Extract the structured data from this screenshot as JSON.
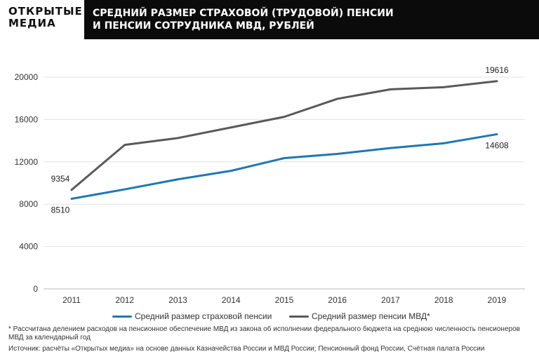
{
  "logo": {
    "line1": "ОТКРЫТЫЕ",
    "line2": "МЕДИА"
  },
  "header": {
    "title_line1": "СРЕДНИЙ РАЗМЕР СТРАХОВОЙ (ТРУДОВОЙ) ПЕНСИИ",
    "title_line2": "И ПЕНСИИ СОТРУДНИКА МВД, РУБЛЕЙ"
  },
  "chart_data": {
    "type": "line",
    "title": "СРЕДНИЙ РАЗМЕР СТРАХОВОЙ (ТРУДОВОЙ) ПЕНСИИ И ПЕНСИИ СОТРУДНИКА МВД, РУБЛЕЙ",
    "xlabel": "",
    "ylabel": "",
    "categories": [
      "2011",
      "2012",
      "2013",
      "2014",
      "2015",
      "2016",
      "2017",
      "2018",
      "2019"
    ],
    "ylim": [
      0,
      20000
    ],
    "yticks": [
      "0",
      "4000",
      "8000",
      "12000",
      "16000",
      "20000"
    ],
    "grid": true,
    "legend_position": "bottom",
    "series": [
      {
        "name": "Средний размер страховой пенсии",
        "color": "#1f77b4",
        "values": [
          8510,
          9400,
          10350,
          11150,
          12350,
          12750,
          13300,
          13750,
          14608
        ],
        "labels": [
          {
            "index": 0,
            "text": "8510",
            "position": "below"
          },
          {
            "index": 8,
            "text": "14608",
            "position": "below"
          }
        ]
      },
      {
        "name": "Средний размер пенсии МВД*",
        "color": "#595959",
        "values": [
          9354,
          13600,
          14250,
          15250,
          16250,
          17950,
          18850,
          19050,
          19616
        ],
        "labels": [
          {
            "index": 0,
            "text": "9354",
            "position": "above"
          },
          {
            "index": 8,
            "text": "19616",
            "position": "above"
          }
        ]
      }
    ]
  },
  "footnote": "* Рассчитана делением расходов на пенсионное обеспечение МВД из закона об исполнении федерального бюджета на среднюю численность пенсионеров МВД за календарный год",
  "source": "Источник: расчёты «Открытых медиа» на основе данных Казначейства России и МВД России; Пенсионный фонд России, Счётная палата России"
}
